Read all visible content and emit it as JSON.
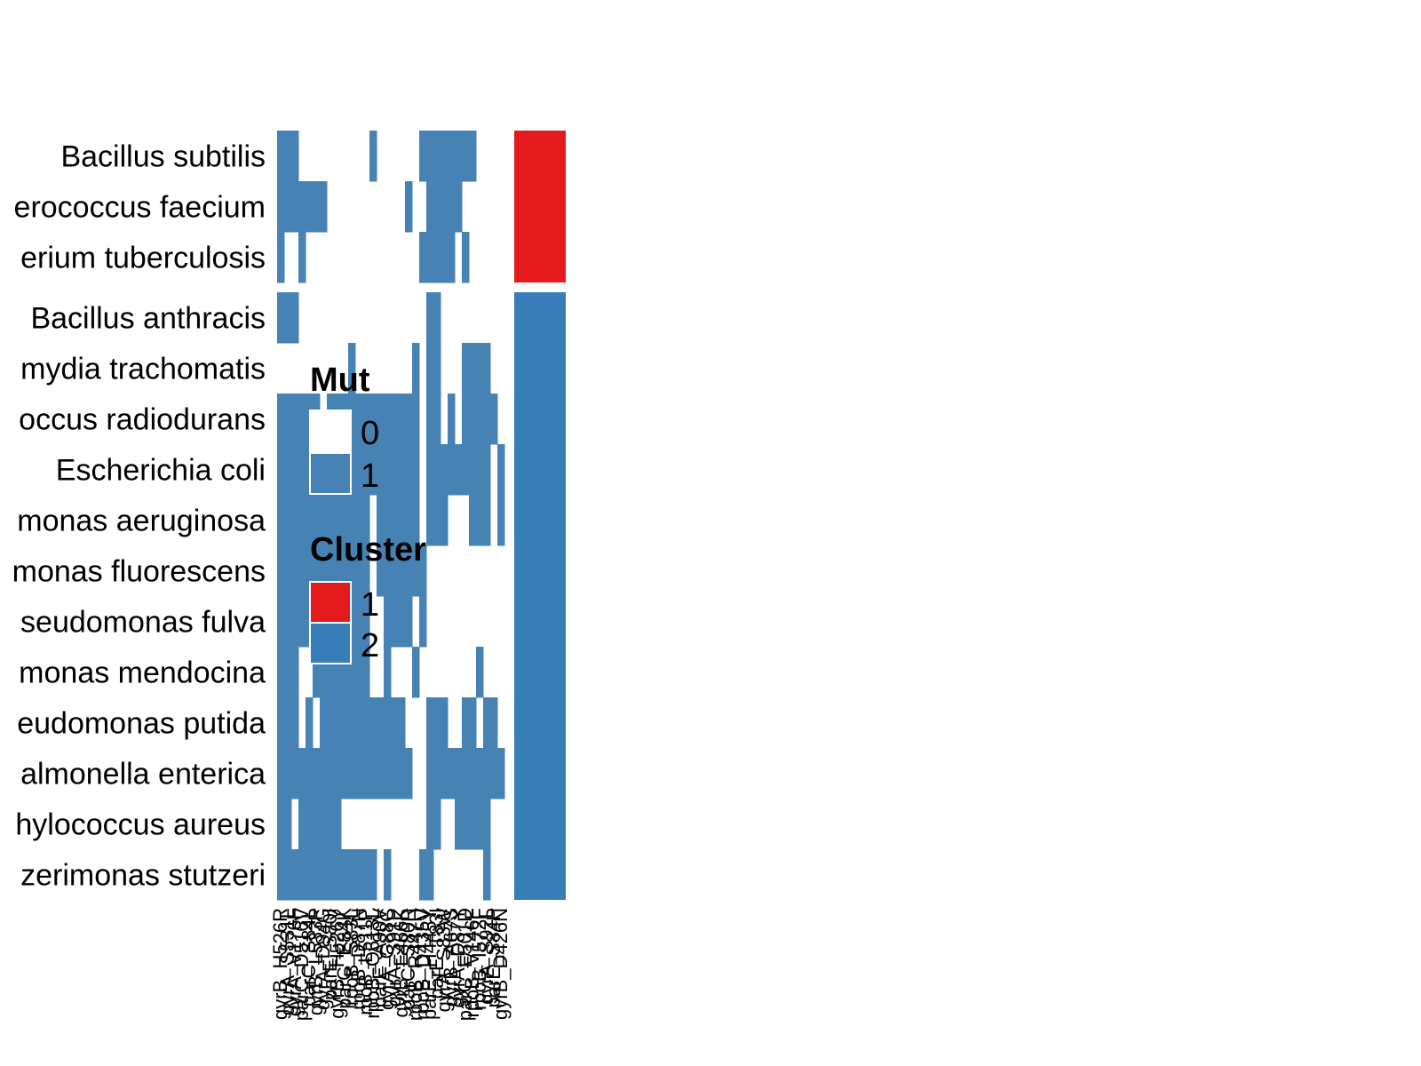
{
  "chart_data": {
    "type": "heatmap",
    "rows": [
      "Bacillus subtilis",
      "Enterococcus faecium",
      "Mycobacterium tuberculosis",
      "Bacillus anthracis",
      "Chlamydia trachomatis",
      "Deinococcus radiodurans",
      "Escherichia coli",
      "Pseudomonas aeruginosa",
      "Pseudomonas fluorescens",
      "Pseudomonas fulva",
      "Pseudomonas mendocina",
      "Pseudomonas putida",
      "Salmonella enterica",
      "Staphylococcus aureus",
      "Stutzerimonas stutzeri"
    ],
    "visible_row_labels": [
      "Bacillus subtilis",
      "erococcus faecium",
      "erium tuberculosis",
      "Bacillus anthracis",
      "mydia trachomatis",
      "occus radiodurans",
      "Escherichia coli",
      "monas aeruginosa",
      "monas fluorescens",
      "seudomonas fulva",
      "monas mendocina",
      "eudomonas putida",
      "almonella enterica",
      "hylococcus aureus",
      "zerimonas stutzeri"
    ],
    "column_labels": [
      "gyrB_H526R",
      "gyrA_S531L",
      "gyrA_V176F",
      "parC_D516V",
      "parC_S84L",
      "gyrB_L533P",
      "gyrA_D94G",
      "parE_S80I",
      "gyrB_H526Y",
      "parC_E84K",
      "rpoB_S83L",
      "rpoB_D87N",
      "rpoB_L511P",
      "rpoB_Q513L",
      "parE_A90V",
      "gyrA_G88C",
      "gyrA_S91P",
      "gyrB_E466K",
      "parC_S80R",
      "rpoB_R447H",
      "rpoB_D435V",
      "parE_H445Y",
      "parE_T83I",
      "gyrA_S83W",
      "gyrB_A67S",
      "gyrA_D87Y",
      "parC_E501D",
      "rpoB_V146F",
      "rpoB_I572F",
      "gyrA_S92L",
      "parE_S84P",
      "gyrB_D426N"
    ],
    "matrix": [
      [
        1,
        1,
        1,
        0,
        0,
        0,
        0,
        0,
        0,
        0,
        0,
        0,
        0,
        1,
        0,
        0,
        0,
        0,
        0,
        0,
        1,
        1,
        1,
        1,
        1,
        1,
        1,
        1,
        0,
        0,
        0,
        0
      ],
      [
        1,
        1,
        1,
        1,
        1,
        1,
        1,
        0,
        0,
        0,
        0,
        0,
        0,
        0,
        0,
        0,
        0,
        0,
        1,
        0,
        0,
        1,
        1,
        1,
        1,
        1,
        0,
        0,
        0,
        0,
        0,
        0
      ],
      [
        1,
        0,
        0,
        1,
        0,
        0,
        0,
        0,
        0,
        0,
        0,
        0,
        0,
        0,
        0,
        0,
        0,
        0,
        0,
        0,
        1,
        1,
        1,
        1,
        1,
        0,
        1,
        0,
        0,
        0,
        0,
        0
      ],
      [
        1,
        1,
        1,
        0,
        0,
        0,
        0,
        0,
        0,
        0,
        0,
        0,
        0,
        0,
        0,
        0,
        0,
        0,
        0,
        0,
        0,
        1,
        1,
        0,
        0,
        0,
        0,
        0,
        0,
        0,
        0,
        0
      ],
      [
        0,
        0,
        0,
        0,
        0,
        0,
        0,
        0,
        0,
        0,
        1,
        0,
        0,
        0,
        0,
        0,
        0,
        0,
        0,
        1,
        0,
        1,
        1,
        0,
        0,
        0,
        1,
        1,
        1,
        1,
        0,
        0
      ],
      [
        1,
        1,
        1,
        1,
        1,
        1,
        0,
        1,
        1,
        1,
        1,
        1,
        1,
        1,
        1,
        1,
        1,
        1,
        1,
        1,
        0,
        1,
        1,
        0,
        1,
        0,
        1,
        1,
        1,
        1,
        1,
        0
      ],
      [
        1,
        1,
        1,
        1,
        1,
        1,
        1,
        1,
        1,
        1,
        1,
        1,
        1,
        1,
        1,
        1,
        1,
        1,
        1,
        1,
        0,
        1,
        1,
        1,
        1,
        1,
        1,
        1,
        1,
        1,
        0,
        1
      ],
      [
        1,
        1,
        1,
        1,
        1,
        1,
        1,
        1,
        1,
        1,
        1,
        1,
        1,
        0,
        1,
        1,
        1,
        1,
        1,
        1,
        0,
        1,
        1,
        1,
        0,
        0,
        0,
        1,
        1,
        1,
        0,
        1
      ],
      [
        1,
        1,
        1,
        1,
        1,
        1,
        1,
        1,
        1,
        1,
        1,
        1,
        1,
        0,
        1,
        1,
        1,
        1,
        1,
        1,
        1,
        0,
        0,
        0,
        0,
        0,
        0,
        0,
        0,
        0,
        0,
        0
      ],
      [
        1,
        1,
        1,
        1,
        1,
        1,
        1,
        1,
        1,
        1,
        1,
        1,
        1,
        0,
        0,
        1,
        1,
        1,
        1,
        0,
        1,
        0,
        0,
        0,
        0,
        0,
        0,
        0,
        0,
        0,
        0,
        0
      ],
      [
        1,
        1,
        1,
        0,
        0,
        1,
        1,
        1,
        1,
        1,
        1,
        1,
        1,
        0,
        0,
        1,
        0,
        0,
        0,
        1,
        0,
        0,
        0,
        0,
        0,
        0,
        0,
        0,
        1,
        0,
        0,
        0
      ],
      [
        1,
        1,
        1,
        0,
        1,
        0,
        1,
        1,
        1,
        1,
        1,
        1,
        1,
        1,
        1,
        1,
        1,
        1,
        0,
        0,
        0,
        1,
        1,
        1,
        0,
        0,
        1,
        1,
        0,
        1,
        1,
        0
      ],
      [
        1,
        1,
        1,
        1,
        1,
        1,
        1,
        1,
        1,
        1,
        1,
        1,
        1,
        1,
        1,
        1,
        1,
        1,
        1,
        0,
        0,
        1,
        1,
        1,
        1,
        1,
        1,
        1,
        1,
        1,
        1,
        1
      ],
      [
        1,
        1,
        0,
        1,
        1,
        1,
        1,
        1,
        1,
        0,
        0,
        0,
        0,
        0,
        0,
        0,
        0,
        0,
        0,
        0,
        0,
        1,
        1,
        0,
        0,
        1,
        1,
        1,
        1,
        1,
        0,
        0
      ],
      [
        1,
        1,
        1,
        1,
        1,
        1,
        1,
        1,
        1,
        1,
        1,
        1,
        1,
        1,
        0,
        1,
        0,
        0,
        0,
        0,
        1,
        1,
        0,
        0,
        0,
        0,
        0,
        0,
        0,
        1,
        0,
        0
      ]
    ],
    "clusters": [
      1,
      1,
      1,
      2,
      2,
      2,
      2,
      2,
      2,
      2,
      2,
      2,
      2,
      2,
      2
    ],
    "row_groups": [
      [
        0,
        2
      ],
      [
        3,
        14
      ]
    ],
    "colors": {
      "mut_0": "#FFFFFF",
      "mut_1": "#4682B4",
      "cluster_1": "#E41A1C",
      "cluster_2": "#377EB8"
    },
    "legends": [
      {
        "title": "Mut",
        "entries": [
          {
            "label": "0",
            "color": "#FFFFFF"
          },
          {
            "label": "1",
            "color": "#4682B4"
          }
        ]
      },
      {
        "title": "Cluster",
        "entries": [
          {
            "label": "1",
            "color": "#E41A1C"
          },
          {
            "label": "2",
            "color": "#377EB8"
          }
        ]
      }
    ]
  }
}
